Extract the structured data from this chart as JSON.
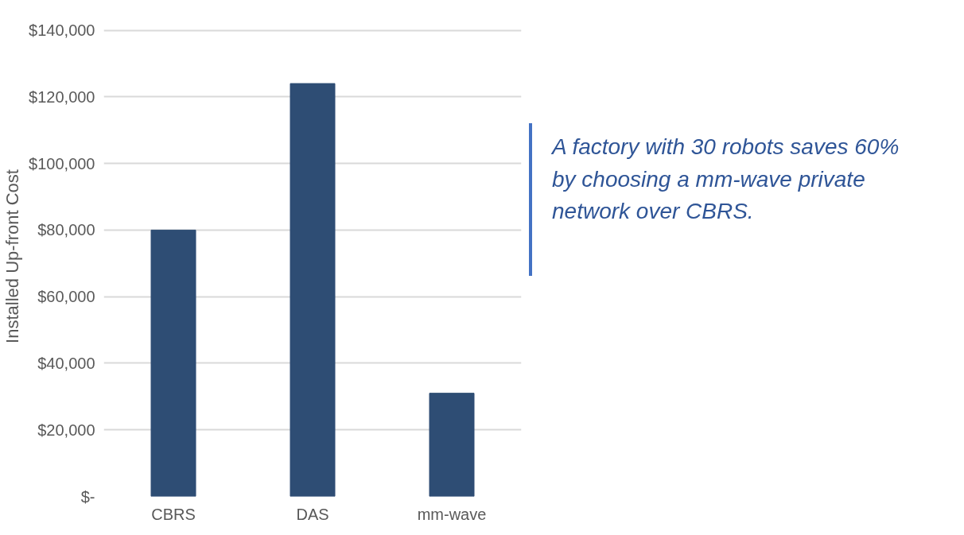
{
  "chart_data": {
    "type": "bar",
    "ylabel": "Installed Up-front Cost",
    "categories": [
      "CBRS",
      "DAS",
      "mm-wave"
    ],
    "values": [
      80000,
      124000,
      31000
    ],
    "color": "#2e4d74",
    "ylim": [
      0,
      140000
    ],
    "yticks": [
      {
        "value": 0,
        "label": "$-"
      },
      {
        "value": 20000,
        "label": "$20,000"
      },
      {
        "value": 40000,
        "label": "$40,000"
      },
      {
        "value": 60000,
        "label": "$60,000"
      },
      {
        "value": 80000,
        "label": "$80,000"
      },
      {
        "value": 100000,
        "label": "$100,000"
      },
      {
        "value": 120000,
        "label": "$120,000"
      },
      {
        "value": 140000,
        "label": "$140,000"
      }
    ],
    "grid": "y",
    "annotations": [
      "A factory with 30 robots saves 60% by choosing a mm-wave private network over CBRS."
    ]
  }
}
